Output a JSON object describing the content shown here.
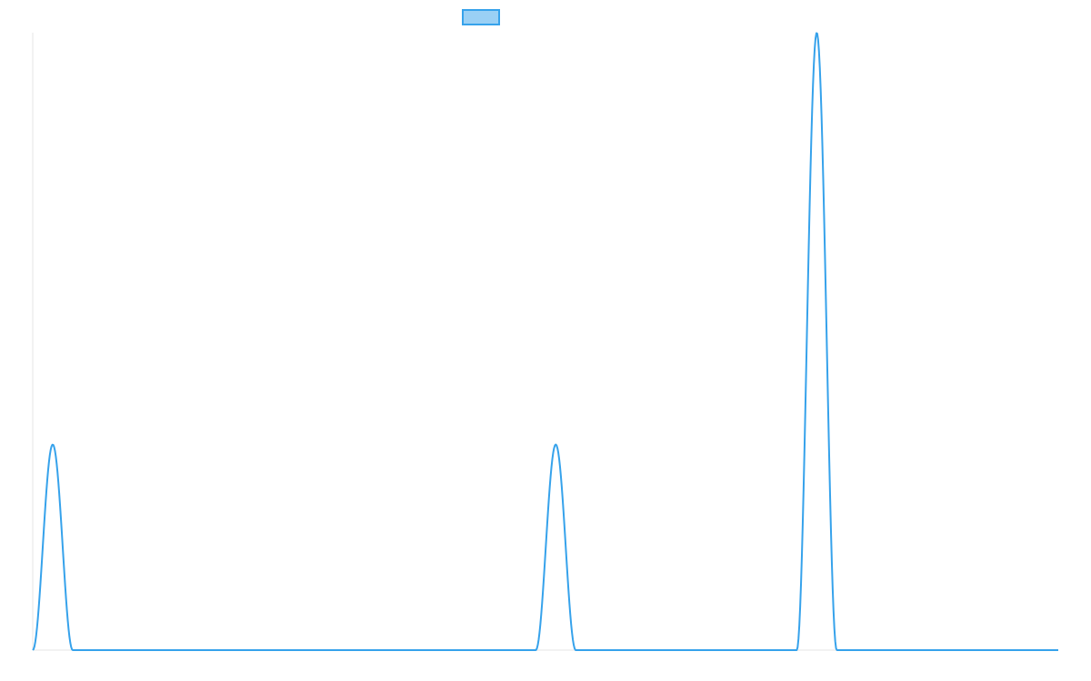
{
  "chart_data": {
    "type": "line",
    "title": "",
    "xlabel": "",
    "ylabel": "",
    "legend": {
      "position": "top",
      "entries": [
        {
          "name": "",
          "color": "#36A2EB"
        }
      ]
    },
    "grid": false,
    "axes_ticks_visible": false,
    "xlim": [
      0,
      1
    ],
    "ylim": [
      0,
      1
    ],
    "series": [
      {
        "name": "",
        "color": "#36A2EB",
        "peaks": [
          {
            "x": 0.0195,
            "height": 0.333,
            "halfwidth": 0.0195
          },
          {
            "x": 0.51,
            "height": 0.333,
            "halfwidth": 0.0195
          },
          {
            "x": 0.7645,
            "height": 1.0,
            "halfwidth": 0.0195
          }
        ],
        "baseline": 0
      }
    ]
  }
}
